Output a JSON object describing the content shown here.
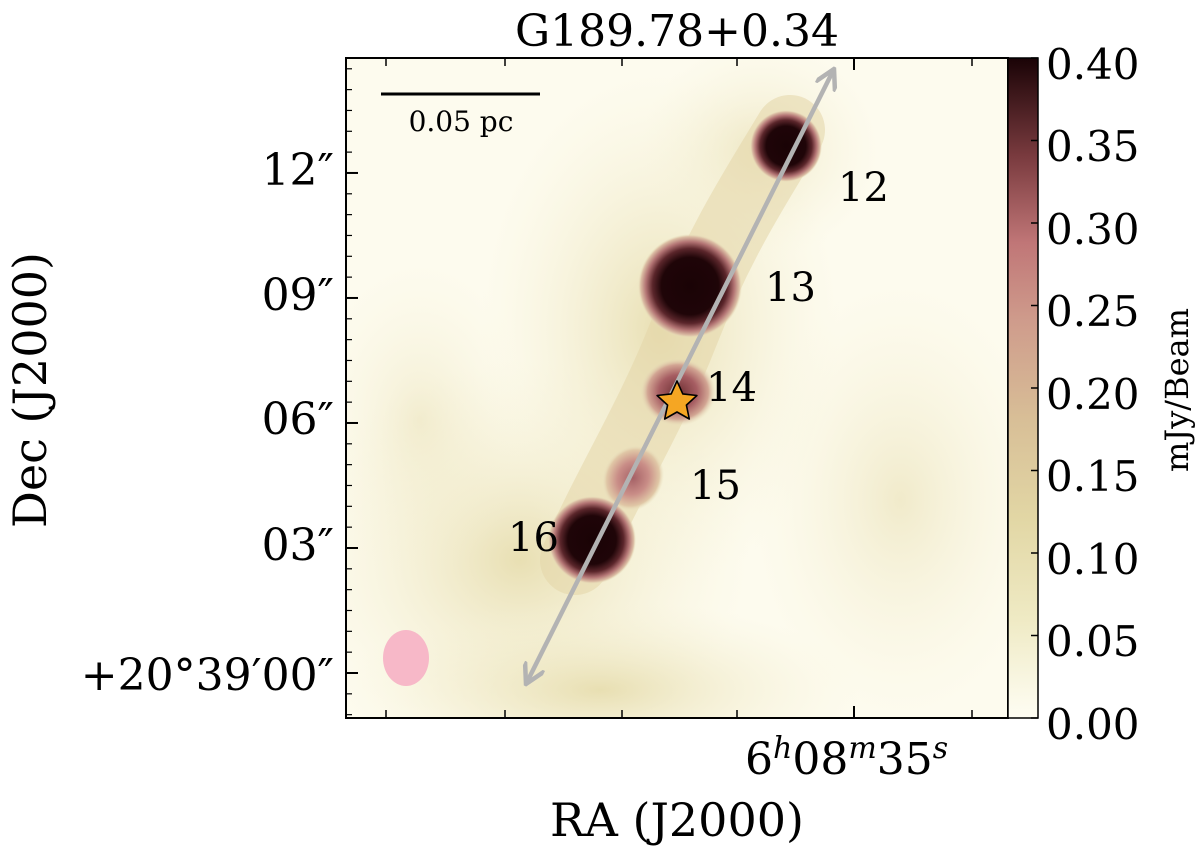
{
  "title": "G189.78+0.34",
  "chart_data": {
    "type": "heatmap",
    "title": "G189.78+0.34",
    "xlabel": "RA (J2000)",
    "ylabel": "Dec (J2000)",
    "colorbar": {
      "label": "mJy/Beam",
      "range": [
        0.0,
        0.4
      ],
      "ticks": [
        "0.40",
        "0.35",
        "0.30",
        "0.25",
        "0.20",
        "0.15",
        "0.10",
        "0.05",
        "0.00"
      ],
      "tick_values": [
        0.4,
        0.35,
        0.3,
        0.25,
        0.2,
        0.15,
        0.1,
        0.05,
        0.0
      ]
    },
    "y_ticks": [
      {
        "label": "12″",
        "arcsec": 12
      },
      {
        "label": "09″",
        "arcsec": 9
      },
      {
        "label": "06″",
        "arcsec": 6
      },
      {
        "label": "03″",
        "arcsec": 3
      },
      {
        "label": "+20°39′00″",
        "arcsec": 0
      }
    ],
    "x_ticks": [
      {
        "label": "6h08m35s",
        "label_main": "6",
        "sup_h": "h",
        "label_mid": "08",
        "sup_m": "m",
        "label_end": "35",
        "sup_s": "s"
      }
    ],
    "scale_bar": "0.05 pc",
    "cores": [
      {
        "label": "12",
        "peak": 0.4
      },
      {
        "label": "13",
        "peak": 0.4
      },
      {
        "label": "14",
        "peak": 0.28
      },
      {
        "label": "15",
        "peak": 0.22
      },
      {
        "label": "16",
        "peak": 0.4
      }
    ],
    "markers": {
      "star": "protostar-star",
      "beam": "beam-ellipse",
      "arrow": "filament-axis-arrow"
    },
    "colors": {
      "colormap_low": "#fdfbe9",
      "colormap_mid": "#d9c79a",
      "colormap_high_pink": "#c47b7d",
      "colormap_max": "#1a0306",
      "arrow": "#b3b3b3",
      "star": "#f5a623",
      "beam": "#f7b8c8"
    }
  }
}
